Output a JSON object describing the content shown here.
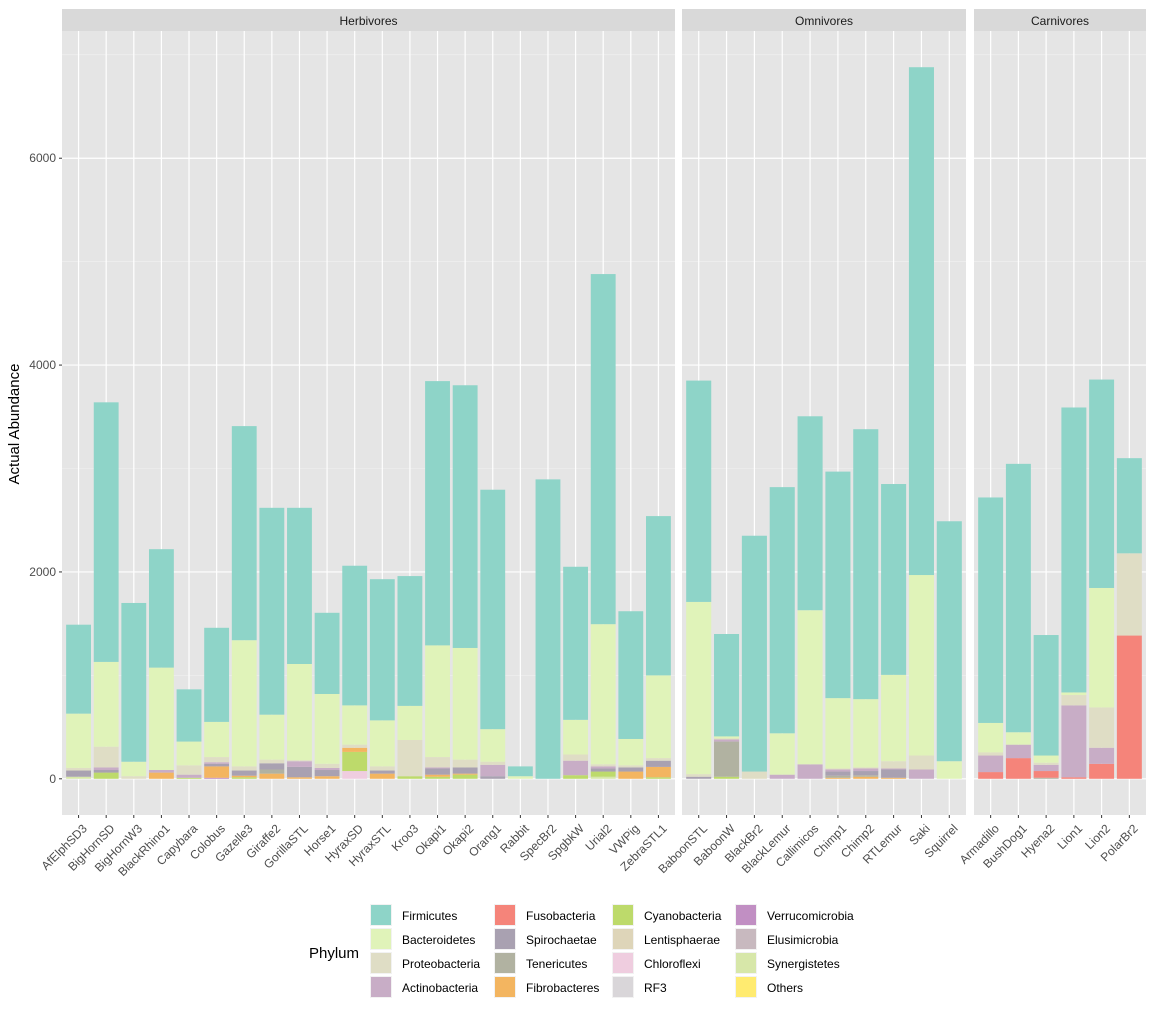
{
  "chart_data": {
    "type": "bar",
    "stacked": true,
    "ylabel": "Actual Abundance",
    "xlabel": "",
    "ylim": [
      -350,
      7230
    ],
    "yticks": [
      0,
      2000,
      4000,
      6000
    ],
    "grid": true,
    "legend": {
      "title": "Phylum",
      "placement": "bottom",
      "entries": [
        "Firmicutes",
        "Bacteroidetes",
        "Proteobacteria",
        "Actinobacteria",
        "Fusobacteria",
        "Spirochaetae",
        "Tenericutes",
        "Fibrobacteres",
        "Cyanobacteria",
        "Lentisphaerae",
        "Chloroflexi",
        "RF3",
        "Verrucomicrobia",
        "Elusimicrobia",
        "Synergistetes",
        "Others"
      ]
    },
    "colors": {
      "Firmicutes": "#8ED4C8",
      "Bacteroidetes": "#E0F3B9",
      "Proteobacteria": "#DFDDC5",
      "Actinobacteria": "#C8ADC6",
      "Fusobacteria": "#F5847A",
      "Spirochaetae": "#A9A1B1",
      "Tenericutes": "#B1B2A1",
      "Fibrobacteres": "#F3B560",
      "Cyanobacteria": "#BDDA6B",
      "Lentisphaerae": "#DED5B9",
      "Chloroflexi": "#EFCDDF",
      "RF3": "#D9D6D9",
      "Verrucomicrobia": "#C18FC3",
      "Elusimicrobia": "#C8B9BF",
      "Synergistetes": "#D7E7A9",
      "Others": "#FFEB70"
    },
    "facets": [
      {
        "name": "Herbivores",
        "bars": [
          {
            "sample": "AfElphSD3",
            "segments": {
              "Synergistetes": 20,
              "Spirochaetae": 60,
              "Proteobacteria": 25,
              "Bacteroidetes": 525,
              "Firmicutes": 860
            }
          },
          {
            "sample": "BigHornSD",
            "segments": {
              "Cyanobacteria": 60,
              "Spirochaetae": 25,
              "Actinobacteria": 25,
              "Proteobacteria": 200,
              "Bacteroidetes": 820,
              "Firmicutes": 2510
            }
          },
          {
            "sample": "BigHornW3",
            "segments": {
              "Proteobacteria": 25,
              "Bacteroidetes": 140,
              "Firmicutes": 1535
            }
          },
          {
            "sample": "BlackRhino1",
            "segments": {
              "Fibrobacteres": 60,
              "Actinobacteria": 25,
              "Bacteroidetes": 990,
              "Firmicutes": 1145
            }
          },
          {
            "sample": "Capybara",
            "segments": {
              "Cyanobacteria": 10,
              "Actinobacteria": 30,
              "Proteobacteria": 90,
              "Bacteroidetes": 230,
              "Firmicutes": 505
            }
          },
          {
            "sample": "Colobus",
            "segments": {
              "Verrucomicrobia": 10,
              "Fibrobacteres": 110,
              "Spirochaetae": 25,
              "Actinobacteria": 15,
              "Proteobacteria": 50,
              "Bacteroidetes": 340,
              "Firmicutes": 910
            }
          },
          {
            "sample": "Gazelle3",
            "segments": {
              "Fibrobacteres": 15,
              "Cyanobacteria": 15,
              "Spirochaetae": 50,
              "Proteobacteria": 40,
              "Bacteroidetes": 1220,
              "Firmicutes": 2070
            }
          },
          {
            "sample": "Giraffe2",
            "segments": {
              "Fibrobacteres": 50,
              "Tenericutes": 40,
              "Spirochaetae": 60,
              "Proteobacteria": 35,
              "Bacteroidetes": 435,
              "Firmicutes": 2000
            }
          },
          {
            "sample": "GorillaSTL",
            "segments": {
              "Fibrobacteres": 15,
              "Spirochaetae": 100,
              "Actinobacteria": 55,
              "Proteobacteria": 10,
              "Bacteroidetes": 930,
              "Firmicutes": 1510
            }
          },
          {
            "sample": "Horse1",
            "segments": {
              "Fibrobacteres": 25,
              "Spirochaetae": 60,
              "Actinobacteria": 20,
              "Proteobacteria": 40,
              "Bacteroidetes": 675,
              "Firmicutes": 785
            }
          },
          {
            "sample": "HyraxSD",
            "segments": {
              "Chloroflexi": 75,
              "Cyanobacteria": 185,
              "Fibrobacteres": 40,
              "Proteobacteria": 30,
              "Bacteroidetes": 380,
              "Firmicutes": 1350
            }
          },
          {
            "sample": "HyraxSTL",
            "segments": {
              "Fibrobacteres": 50,
              "Spirochaetae": 30,
              "Proteobacteria": 40,
              "Bacteroidetes": 445,
              "Firmicutes": 1365
            }
          },
          {
            "sample": "Kroo3",
            "segments": {
              "Cyanobacteria": 25,
              "Proteobacteria": 350,
              "Bacteroidetes": 330,
              "Firmicutes": 1255
            }
          },
          {
            "sample": "Okapi1",
            "segments": {
              "Actinobacteria": 10,
              "Cyanobacteria": 20,
              "Fibrobacteres": 20,
              "Spirochaetae": 60,
              "Proteobacteria": 100,
              "Bacteroidetes": 1080,
              "Firmicutes": 2555
            }
          },
          {
            "sample": "Okapi2",
            "segments": {
              "Cyanobacteria": 40,
              "Fibrobacteres": 10,
              "Spirochaetae": 60,
              "Proteobacteria": 75,
              "Bacteroidetes": 1080,
              "Firmicutes": 2540
            }
          },
          {
            "sample": "Orang1",
            "segments": {
              "Spirochaetae": 25,
              "Actinobacteria": 110,
              "Proteobacteria": 30,
              "Bacteroidetes": 315,
              "Firmicutes": 2315
            }
          },
          {
            "sample": "Rabbit",
            "segments": {
              "Bacteroidetes": 25,
              "Firmicutes": 95
            }
          },
          {
            "sample": "SpecBr2",
            "segments": {
              "Firmicutes": 2895
            }
          },
          {
            "sample": "SpgbkW",
            "segments": {
              "Cyanobacteria": 35,
              "Actinobacteria": 140,
              "Proteobacteria": 60,
              "Bacteroidetes": 335,
              "Firmicutes": 1480
            }
          },
          {
            "sample": "Urial2",
            "segments": {
              "Synergistetes": 20,
              "Cyanobacteria": 50,
              "Spirochaetae": 30,
              "Actinobacteria": 20,
              "Proteobacteria": 20,
              "Bacteroidetes": 1355,
              "Firmicutes": 3385
            }
          },
          {
            "sample": "VWPig",
            "segments": {
              "Fibrobacteres": 70,
              "Spirochaetae": 40,
              "Proteobacteria": 20,
              "Bacteroidetes": 255,
              "Firmicutes": 1235
            }
          },
          {
            "sample": "ZebraSTL1",
            "segments": {
              "Cyanobacteria": 15,
              "Fibrobacteres": 100,
              "Spirochaetae": 60,
              "Proteobacteria": 25,
              "Bacteroidetes": 800,
              "Firmicutes": 1540
            }
          }
        ]
      },
      {
        "name": "Omnivores",
        "bars": [
          {
            "sample": "BaboonSTL",
            "segments": {
              "Spirochaetae": 20,
              "Proteobacteria": 25,
              "Bacteroidetes": 1665,
              "Firmicutes": 2140
            }
          },
          {
            "sample": "BaboonW",
            "segments": {
              "Proteobacteria": 10,
              "Cyanobacteria": 20,
              "Tenericutes": 340,
              "Actinobacteria": 20,
              "Bacteroidetes": 20,
              "Firmicutes": 990
            }
          },
          {
            "sample": "BlackBr2",
            "segments": {
              "Proteobacteria": 70,
              "Firmicutes": 2280
            }
          },
          {
            "sample": "BlackLemur",
            "segments": {
              "Actinobacteria": 40,
              "Bacteroidetes": 400,
              "Firmicutes": 2380
            }
          },
          {
            "sample": "Callimicos",
            "segments": {
              "Actinobacteria": 140,
              "Bacteroidetes": 1490,
              "Firmicutes": 1875
            }
          },
          {
            "sample": "Chimp1",
            "segments": {
              "Fibrobacteres": 10,
              "Tenericutes": 20,
              "Spirochaetae": 40,
              "Actinobacteria": 20,
              "Proteobacteria": 10,
              "Bacteroidetes": 680,
              "Firmicutes": 2190
            }
          },
          {
            "sample": "Chimp2",
            "segments": {
              "Fibrobacteres": 20,
              "Tenericutes": 15,
              "Spirochaetae": 40,
              "Actinobacteria": 25,
              "Proteobacteria": 10,
              "Bacteroidetes": 660,
              "Firmicutes": 2610
            }
          },
          {
            "sample": "RTLemur",
            "segments": {
              "Fibrobacteres": 10,
              "Spirochaetae": 80,
              "Actinobacteria": 10,
              "Proteobacteria": 70,
              "Bacteroidetes": 835,
              "Firmicutes": 1845
            }
          },
          {
            "sample": "Saki",
            "segments": {
              "Actinobacteria": 90,
              "Proteobacteria": 135,
              "Bacteroidetes": 1745,
              "Firmicutes": 4910
            }
          },
          {
            "sample": "Squirrel",
            "segments": {
              "Bacteroidetes": 170,
              "Firmicutes": 2320
            }
          }
        ]
      },
      {
        "name": "Carnivores",
        "bars": [
          {
            "sample": "Armadillo",
            "segments": {
              "Fusobacteria": 65,
              "Actinobacteria": 160,
              "Proteobacteria": 30,
              "Bacteroidetes": 285,
              "Firmicutes": 2180
            }
          },
          {
            "sample": "BushDog1",
            "segments": {
              "Fusobacteria": 200,
              "Actinobacteria": 130,
              "Bacteroidetes": 120,
              "Firmicutes": 2595
            }
          },
          {
            "sample": "Hyena2",
            "segments": {
              "Tenericutes": 10,
              "Fusobacteria": 65,
              "Actinobacteria": 60,
              "Proteobacteria": 20,
              "Bacteroidetes": 70,
              "Firmicutes": 1165
            }
          },
          {
            "sample": "Lion1",
            "segments": {
              "Fusobacteria": 15,
              "Actinobacteria": 695,
              "Proteobacteria": 100,
              "Bacteroidetes": 25,
              "Firmicutes": 2755
            }
          },
          {
            "sample": "Lion2",
            "segments": {
              "Fusobacteria": 145,
              "Actinobacteria": 155,
              "Proteobacteria": 390,
              "Bacteroidetes": 1155,
              "Firmicutes": 2015
            }
          },
          {
            "sample": "PolarBr2",
            "segments": {
              "Fusobacteria": 1385,
              "Proteobacteria": 795,
              "Firmicutes": 920
            }
          }
        ]
      }
    ]
  }
}
